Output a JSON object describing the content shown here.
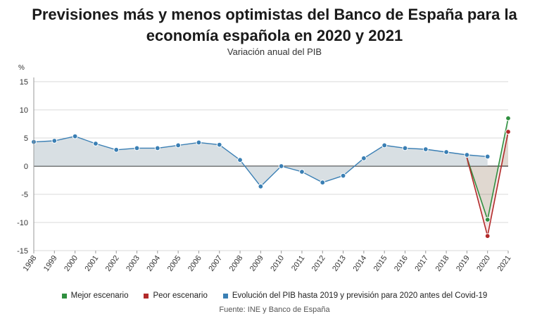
{
  "header": {
    "title_line1": "Previsiones más y menos optimistas del Banco de España para la",
    "title_line2": "economía española en 2020 y 2021",
    "subtitle": "Variación anual del PIB"
  },
  "colors": {
    "baseline": "#3a7fb4",
    "best": "#2f8f3f",
    "worst": "#b22a2a",
    "area": "#b8c4cc",
    "grid": "#d8d8d8",
    "zero": "#333333"
  },
  "chart_data": {
    "type": "line",
    "ylabel": "%",
    "ylim": [
      -15,
      15
    ],
    "yticks": [
      15,
      10,
      5,
      0,
      -5,
      -10,
      -15
    ],
    "categories": [
      "1998",
      "1999",
      "2000",
      "2001",
      "2002",
      "2003",
      "2004",
      "2005",
      "2006",
      "2007",
      "2008",
      "2009",
      "2010",
      "2011",
      "2012",
      "2013",
      "2014",
      "2015",
      "2016",
      "2017",
      "2018",
      "2019",
      "2020",
      "2021"
    ],
    "grid": "horizontal",
    "legend_position": "bottom",
    "series": [
      {
        "name": "Evolución del PIB hasta 2019 y previsión para 2020 antes del Covid-19",
        "key": "baseline",
        "x": [
          "1998",
          "1999",
          "2000",
          "2001",
          "2002",
          "2003",
          "2004",
          "2005",
          "2006",
          "2007",
          "2008",
          "2009",
          "2010",
          "2011",
          "2012",
          "2013",
          "2014",
          "2015",
          "2016",
          "2017",
          "2018",
          "2019",
          "2020"
        ],
        "values": [
          4.3,
          4.5,
          5.3,
          4.0,
          2.9,
          3.2,
          3.2,
          3.7,
          4.2,
          3.8,
          1.1,
          -3.6,
          0.0,
          -1.0,
          -2.9,
          -1.7,
          1.4,
          3.7,
          3.2,
          3.0,
          2.5,
          2.0,
          1.7
        ]
      },
      {
        "name": "Mejor escenario",
        "key": "best",
        "x": [
          "2019",
          "2020",
          "2021"
        ],
        "values": [
          1.5,
          -9.5,
          8.5
        ]
      },
      {
        "name": "Peor escenario",
        "key": "worst",
        "x": [
          "2019",
          "2020",
          "2021"
        ],
        "values": [
          1.5,
          -12.4,
          6.1
        ]
      }
    ]
  },
  "legend": {
    "best": "Mejor escenario",
    "worst": "Peor escenario",
    "baseline": "Evolución del PIB hasta 2019 y previsión para 2020 antes del Covid-19"
  },
  "source": "Fuente: INE y Banco de España"
}
